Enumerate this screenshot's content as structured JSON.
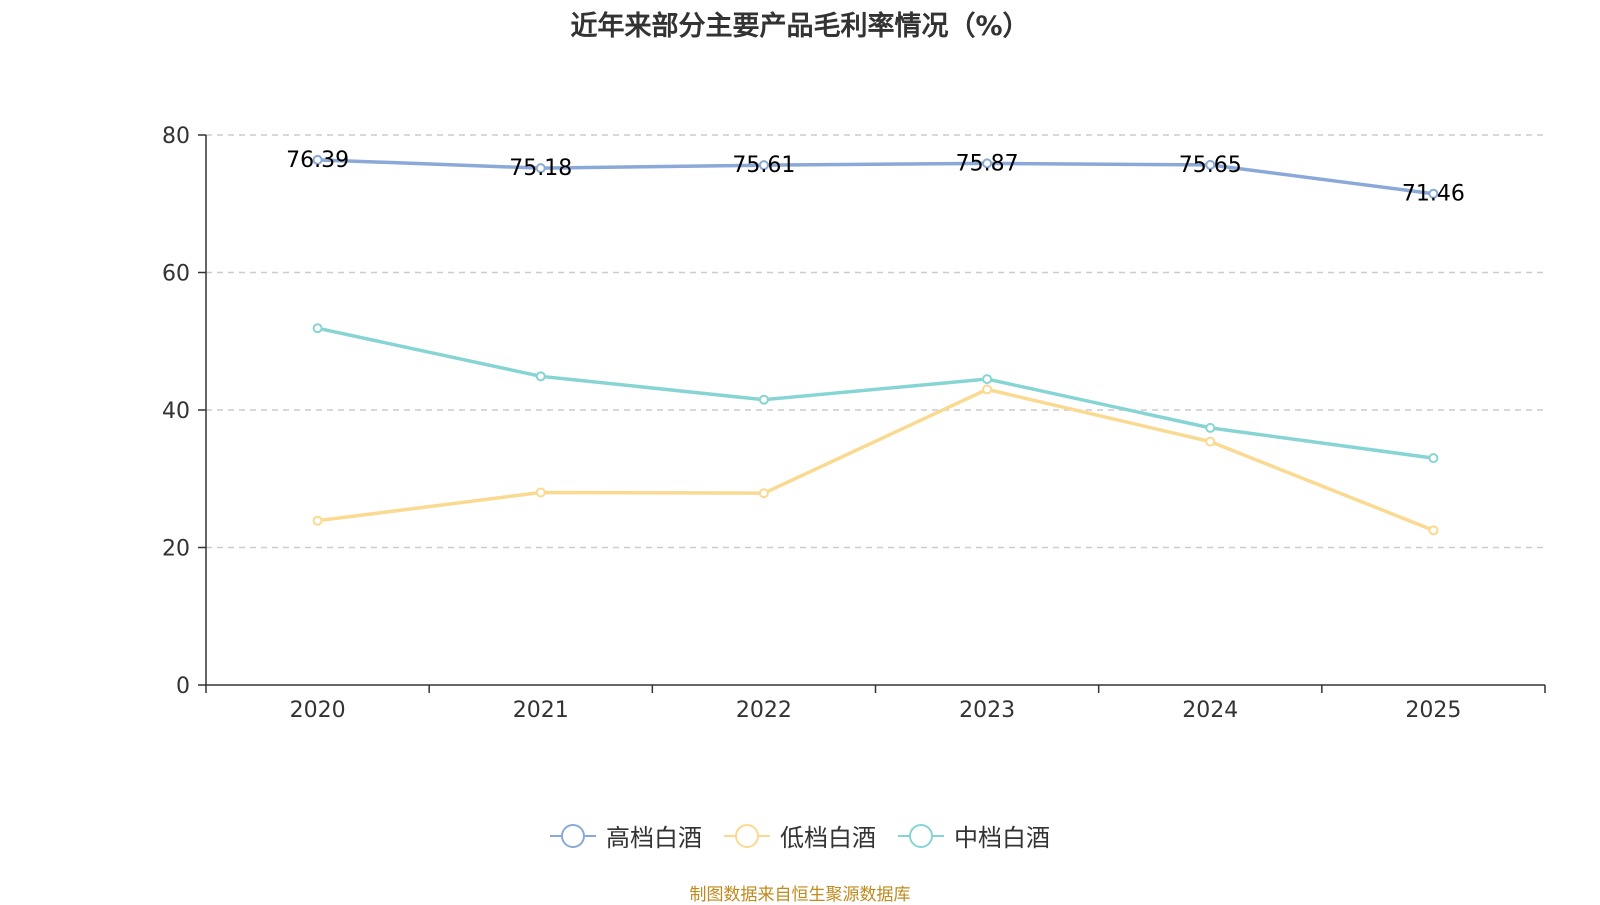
{
  "chart_data": {
    "type": "line",
    "title": "近年来部分主要产品毛利率情况（%）",
    "categories": [
      "2020",
      "2021",
      "2022",
      "2023",
      "2024",
      "2025"
    ],
    "series": [
      {
        "name": "高档白酒",
        "color": "#8aa9d8",
        "values": [
          76.39,
          75.18,
          75.61,
          75.87,
          75.65,
          71.46
        ],
        "show_labels": true
      },
      {
        "name": "低档白酒",
        "color": "#fad991",
        "values": [
          23.9,
          28.0,
          27.9,
          43.0,
          35.4,
          22.5
        ],
        "show_labels": false
      },
      {
        "name": "中档白酒",
        "color": "#86d5d4",
        "values": [
          51.9,
          44.9,
          41.5,
          44.5,
          37.4,
          33.0
        ],
        "show_labels": false
      }
    ],
    "ylim": [
      0,
      80
    ],
    "yticks": [
      0,
      20,
      40,
      60,
      80
    ],
    "grid": true,
    "legend": "bottom-center",
    "source": "制图数据来自恒生聚源数据库"
  }
}
